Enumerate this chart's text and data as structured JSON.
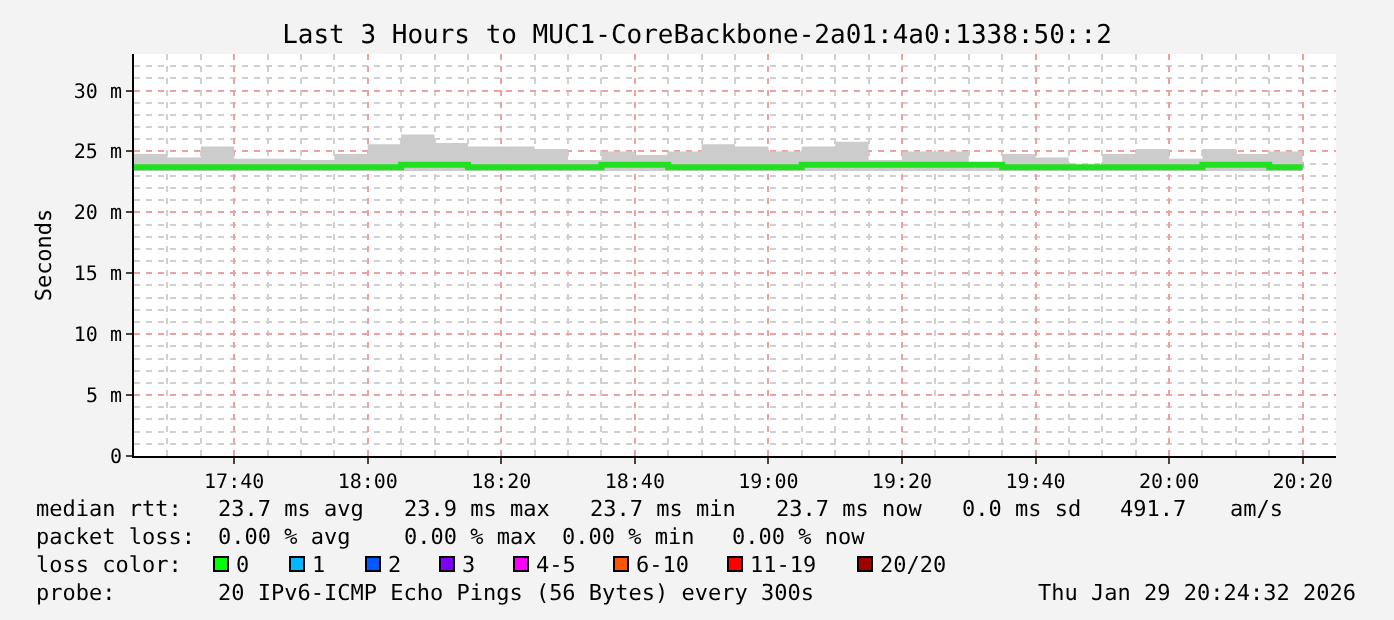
{
  "chart_data": {
    "type": "step",
    "title": "Last 3 Hours to MUC1-CoreBackbone-2a01:4a0:1338:50::2",
    "ylabel": "Seconds",
    "xlim": [
      "2026-01-29T17:25",
      "2026-01-29T20:25"
    ],
    "xticks": [
      {
        "value": "2026-01-29T17:40",
        "label": "17:40"
      },
      {
        "value": "2026-01-29T18:00",
        "label": "18:00"
      },
      {
        "value": "2026-01-29T18:20",
        "label": "18:20"
      },
      {
        "value": "2026-01-29T18:40",
        "label": "18:40"
      },
      {
        "value": "2026-01-29T19:00",
        "label": "19:00"
      },
      {
        "value": "2026-01-29T19:20",
        "label": "19:20"
      },
      {
        "value": "2026-01-29T19:40",
        "label": "19:40"
      },
      {
        "value": "2026-01-29T20:00",
        "label": "20:00"
      },
      {
        "value": "2026-01-29T20:20",
        "label": "20:20"
      }
    ],
    "ylim": [
      0,
      33
    ],
    "yticks": [
      {
        "value": 0,
        "label": "0"
      },
      {
        "value": 5,
        "label": "5 m"
      },
      {
        "value": 10,
        "label": "10 m"
      },
      {
        "value": 15,
        "label": "15 m"
      },
      {
        "value": 20,
        "label": "20 m"
      },
      {
        "value": 25,
        "label": "25 m"
      },
      {
        "value": 30,
        "label": "30 m"
      }
    ],
    "grid": true,
    "series": [
      {
        "color": "#20e020",
        "x": [
          "2026-01-29T17:25",
          "2026-01-29T17:30",
          "2026-01-29T17:35",
          "2026-01-29T17:40",
          "2026-01-29T17:45",
          "2026-01-29T17:50",
          "2026-01-29T17:55",
          "2026-01-29T18:00",
          "2026-01-29T18:05",
          "2026-01-29T18:10",
          "2026-01-29T18:15",
          "2026-01-29T18:20",
          "2026-01-29T18:25",
          "2026-01-29T18:30",
          "2026-01-29T18:35",
          "2026-01-29T18:40",
          "2026-01-29T18:45",
          "2026-01-29T18:50",
          "2026-01-29T18:55",
          "2026-01-29T19:00",
          "2026-01-29T19:05",
          "2026-01-29T19:10",
          "2026-01-29T19:15",
          "2026-01-29T19:20",
          "2026-01-29T19:25",
          "2026-01-29T19:30",
          "2026-01-29T19:35",
          "2026-01-29T19:40",
          "2026-01-29T19:45",
          "2026-01-29T19:50",
          "2026-01-29T19:55",
          "2026-01-29T20:00",
          "2026-01-29T20:05",
          "2026-01-29T20:10",
          "2026-01-29T20:15",
          "2026-01-29T20:20"
        ],
        "values": [
          23.7,
          23.7,
          23.7,
          23.7,
          23.7,
          23.7,
          23.7,
          23.7,
          23.9,
          23.9,
          23.7,
          23.7,
          23.7,
          23.7,
          23.9,
          23.9,
          23.7,
          23.7,
          23.7,
          23.7,
          23.9,
          23.9,
          23.9,
          23.9,
          23.9,
          23.9,
          23.7,
          23.7,
          23.7,
          23.7,
          23.7,
          23.7,
          23.9,
          23.9,
          23.7,
          23.7
        ],
        "lower": [
          23.4,
          23.4,
          23.4,
          23.4,
          23.4,
          23.4,
          23.4,
          23.4,
          23.4,
          23.4,
          23.4,
          23.4,
          23.4,
          23.4,
          23.4,
          23.4,
          23.4,
          23.4,
          23.4,
          23.4,
          23.4,
          23.4,
          23.4,
          23.4,
          23.4,
          23.4,
          23.4,
          23.4,
          23.4,
          23.4,
          23.4,
          23.4,
          23.4,
          23.4,
          23.4,
          23.4
        ],
        "upper": [
          24.8,
          24.5,
          25.4,
          24.4,
          24.4,
          24.3,
          24.8,
          25.6,
          26.4,
          25.7,
          25.4,
          25.4,
          25.2,
          24.3,
          25.0,
          24.7,
          25.0,
          25.6,
          25.4,
          25.0,
          25.4,
          25.8,
          24.3,
          25.0,
          25.0,
          24.1,
          24.8,
          24.5,
          23.8,
          24.8,
          25.2,
          24.4,
          25.2,
          24.8,
          25.0,
          25.0
        ]
      }
    ],
    "annotations": [
      "median rtt:",
      "23.7 ms avg",
      "23.9 ms max",
      "23.7 ms min",
      "23.7 ms now",
      "0.0 ms sd",
      "491.7",
      "am/s",
      "packet loss:",
      "0.00 % avg",
      "0.00 % max",
      "0.00 % min",
      "0.00 % now",
      "loss color:",
      "0",
      "1",
      "2",
      "3",
      "4-5",
      "6-10",
      "11-19",
      "20/20",
      "probe:",
      "20 IPv6-ICMP Echo Pings (56 Bytes) every 300s",
      "Thu Jan 29 20:24:32 2026"
    ]
  }
}
